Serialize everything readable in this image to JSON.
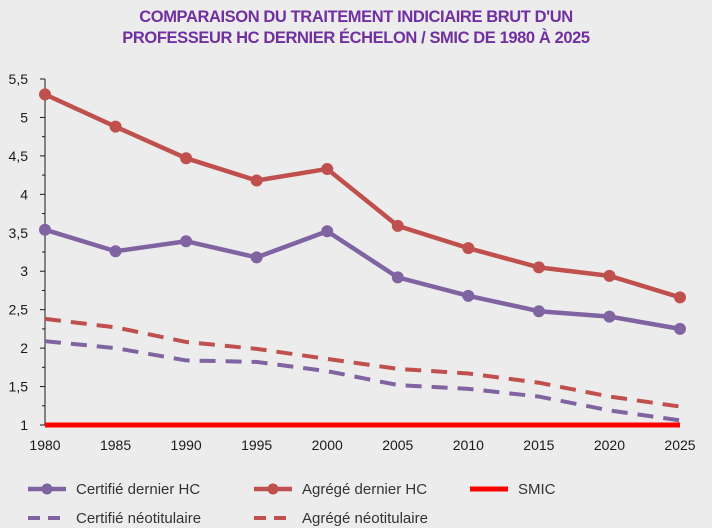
{
  "chart_data": {
    "type": "line",
    "title_lines": [
      "COMPARAISON DU TRAITEMENT INDICIAIRE BRUT D'UN",
      "PROFESSEUR HC DERNIER ÉCHELON / SMIC DE 1980 À 2025"
    ],
    "x": [
      "1980",
      "1985",
      "1990",
      "1995",
      "2000",
      "2005",
      "2010",
      "2015",
      "2020",
      "2025"
    ],
    "y_ticks": [
      "1",
      "1,5",
      "2",
      "2,5",
      "3",
      "3,5",
      "4",
      "4,5",
      "5",
      "5,5"
    ],
    "ylim": [
      1,
      5.5
    ],
    "grid": false,
    "legend_position": "bottom",
    "series": [
      {
        "name": "Certifié dernier HC",
        "color": "#8064a2",
        "style": "solid-markers",
        "values": [
          3.54,
          3.26,
          3.39,
          3.18,
          3.52,
          2.92,
          2.68,
          2.48,
          2.41,
          2.25
        ]
      },
      {
        "name": "Agrégé dernier HC",
        "color": "#c0504d",
        "style": "solid-markers",
        "values": [
          5.3,
          4.88,
          4.47,
          4.18,
          4.33,
          3.59,
          3.3,
          3.05,
          2.94,
          2.66
        ]
      },
      {
        "name": "SMIC",
        "color": "#ff0000",
        "style": "solid-thick",
        "values": [
          1,
          1,
          1,
          1,
          1,
          1,
          1,
          1,
          1,
          1
        ]
      },
      {
        "name": "Certifié néotitulaire",
        "color": "#8064a2",
        "style": "dashed",
        "values": [
          2.09,
          2.0,
          1.84,
          1.82,
          1.7,
          1.52,
          1.47,
          1.37,
          1.19,
          1.06
        ]
      },
      {
        "name": "Agrégé néotitulaire",
        "color": "#c0504d",
        "style": "dashed",
        "values": [
          2.38,
          2.27,
          2.08,
          1.99,
          1.86,
          1.73,
          1.67,
          1.55,
          1.37,
          1.24
        ]
      }
    ]
  }
}
